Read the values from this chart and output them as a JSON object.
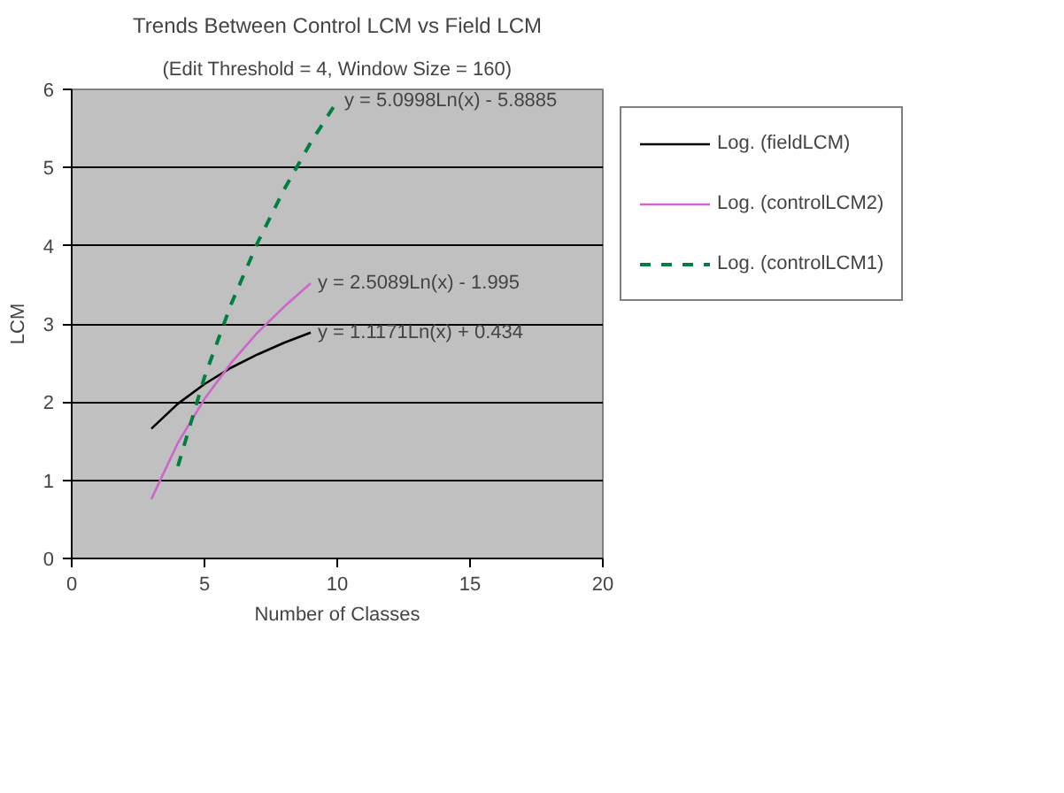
{
  "chart_data": {
    "type": "line",
    "title": "Trends Between Control LCM vs Field LCM",
    "subtitle": "(Edit Threshold = 4, Window Size = 160)",
    "xlabel": "Number of Classes",
    "ylabel": "LCM",
    "xlim": [
      0,
      20
    ],
    "xticks": [
      0,
      5,
      10,
      15,
      20
    ],
    "ylim": [
      0,
      6
    ],
    "yticks": [
      0,
      1,
      2,
      3,
      4,
      5,
      6
    ],
    "grid": "y",
    "legend": "right",
    "series": [
      {
        "name": "Log. (fieldLCM)",
        "color": "#000000",
        "line_style": "solid",
        "x": [
          3,
          4,
          5,
          6,
          7,
          8,
          9
        ],
        "values": [
          1.66,
          1.98,
          2.23,
          2.44,
          2.61,
          2.76,
          2.89
        ]
      },
      {
        "name": "Log. (controlLCM2)",
        "color": "#cc66cc",
        "line_style": "solid",
        "x": [
          3,
          4,
          5,
          6,
          7,
          8,
          9
        ],
        "values": [
          0.76,
          1.48,
          2.04,
          2.5,
          2.89,
          3.22,
          3.52
        ]
      },
      {
        "name": "Log. (controlLCM1)",
        "color": "#008040",
        "line_style": "dashed",
        "x": [
          4,
          5,
          6,
          7,
          8,
          9,
          10
        ],
        "values": [
          1.18,
          2.32,
          3.25,
          4.04,
          4.72,
          5.32,
          5.85
        ]
      }
    ],
    "annotations": [
      "y = 1.1171Ln(x) + 0.434",
      "y = 2.5089Ln(x) - 1.995",
      "y = 5.0998Ln(x) - 5.8885"
    ]
  }
}
